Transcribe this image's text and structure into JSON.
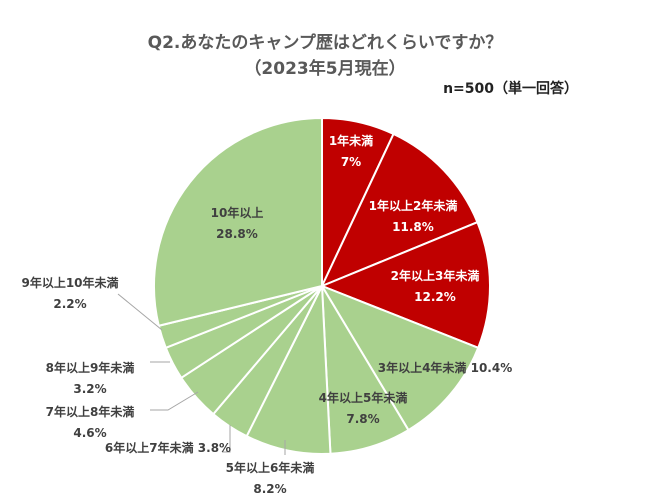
{
  "chart_data": {
    "type": "pie",
    "title": "Q2.あなたのキャンプ歴はどれくらいですか？",
    "subtitle": "（2023年5月現在）",
    "note": "n=500（単一回答）",
    "categories": [
      "1年未満",
      "1年以上2年未満",
      "2年以上3年未満",
      "3年以上4年未満",
      "4年以上5年未満",
      "5年以上6年未満",
      "6年以上7年未満",
      "7年以上8年未満",
      "8年以上9年未満",
      "9年以上10年未満",
      "10年以上"
    ],
    "values": [
      7,
      11.8,
      12.2,
      10.4,
      7.8,
      8.2,
      3.8,
      4.6,
      3.2,
      2.2,
      28.8
    ],
    "value_labels": [
      "7%",
      "11.8%",
      "12.2%",
      "10.4%",
      "7.8%",
      "8.2%",
      "3.8%",
      "4.6%",
      "3.2%",
      "2.2%",
      "28.8%"
    ],
    "colors": [
      "#c00000",
      "#c00000",
      "#c00000",
      "#a9d18e",
      "#a9d18e",
      "#a9d18e",
      "#a9d18e",
      "#a9d18e",
      "#a9d18e",
      "#a9d18e",
      "#a9d18e"
    ],
    "start_angle_deg": 0,
    "direction": "clockwise"
  }
}
